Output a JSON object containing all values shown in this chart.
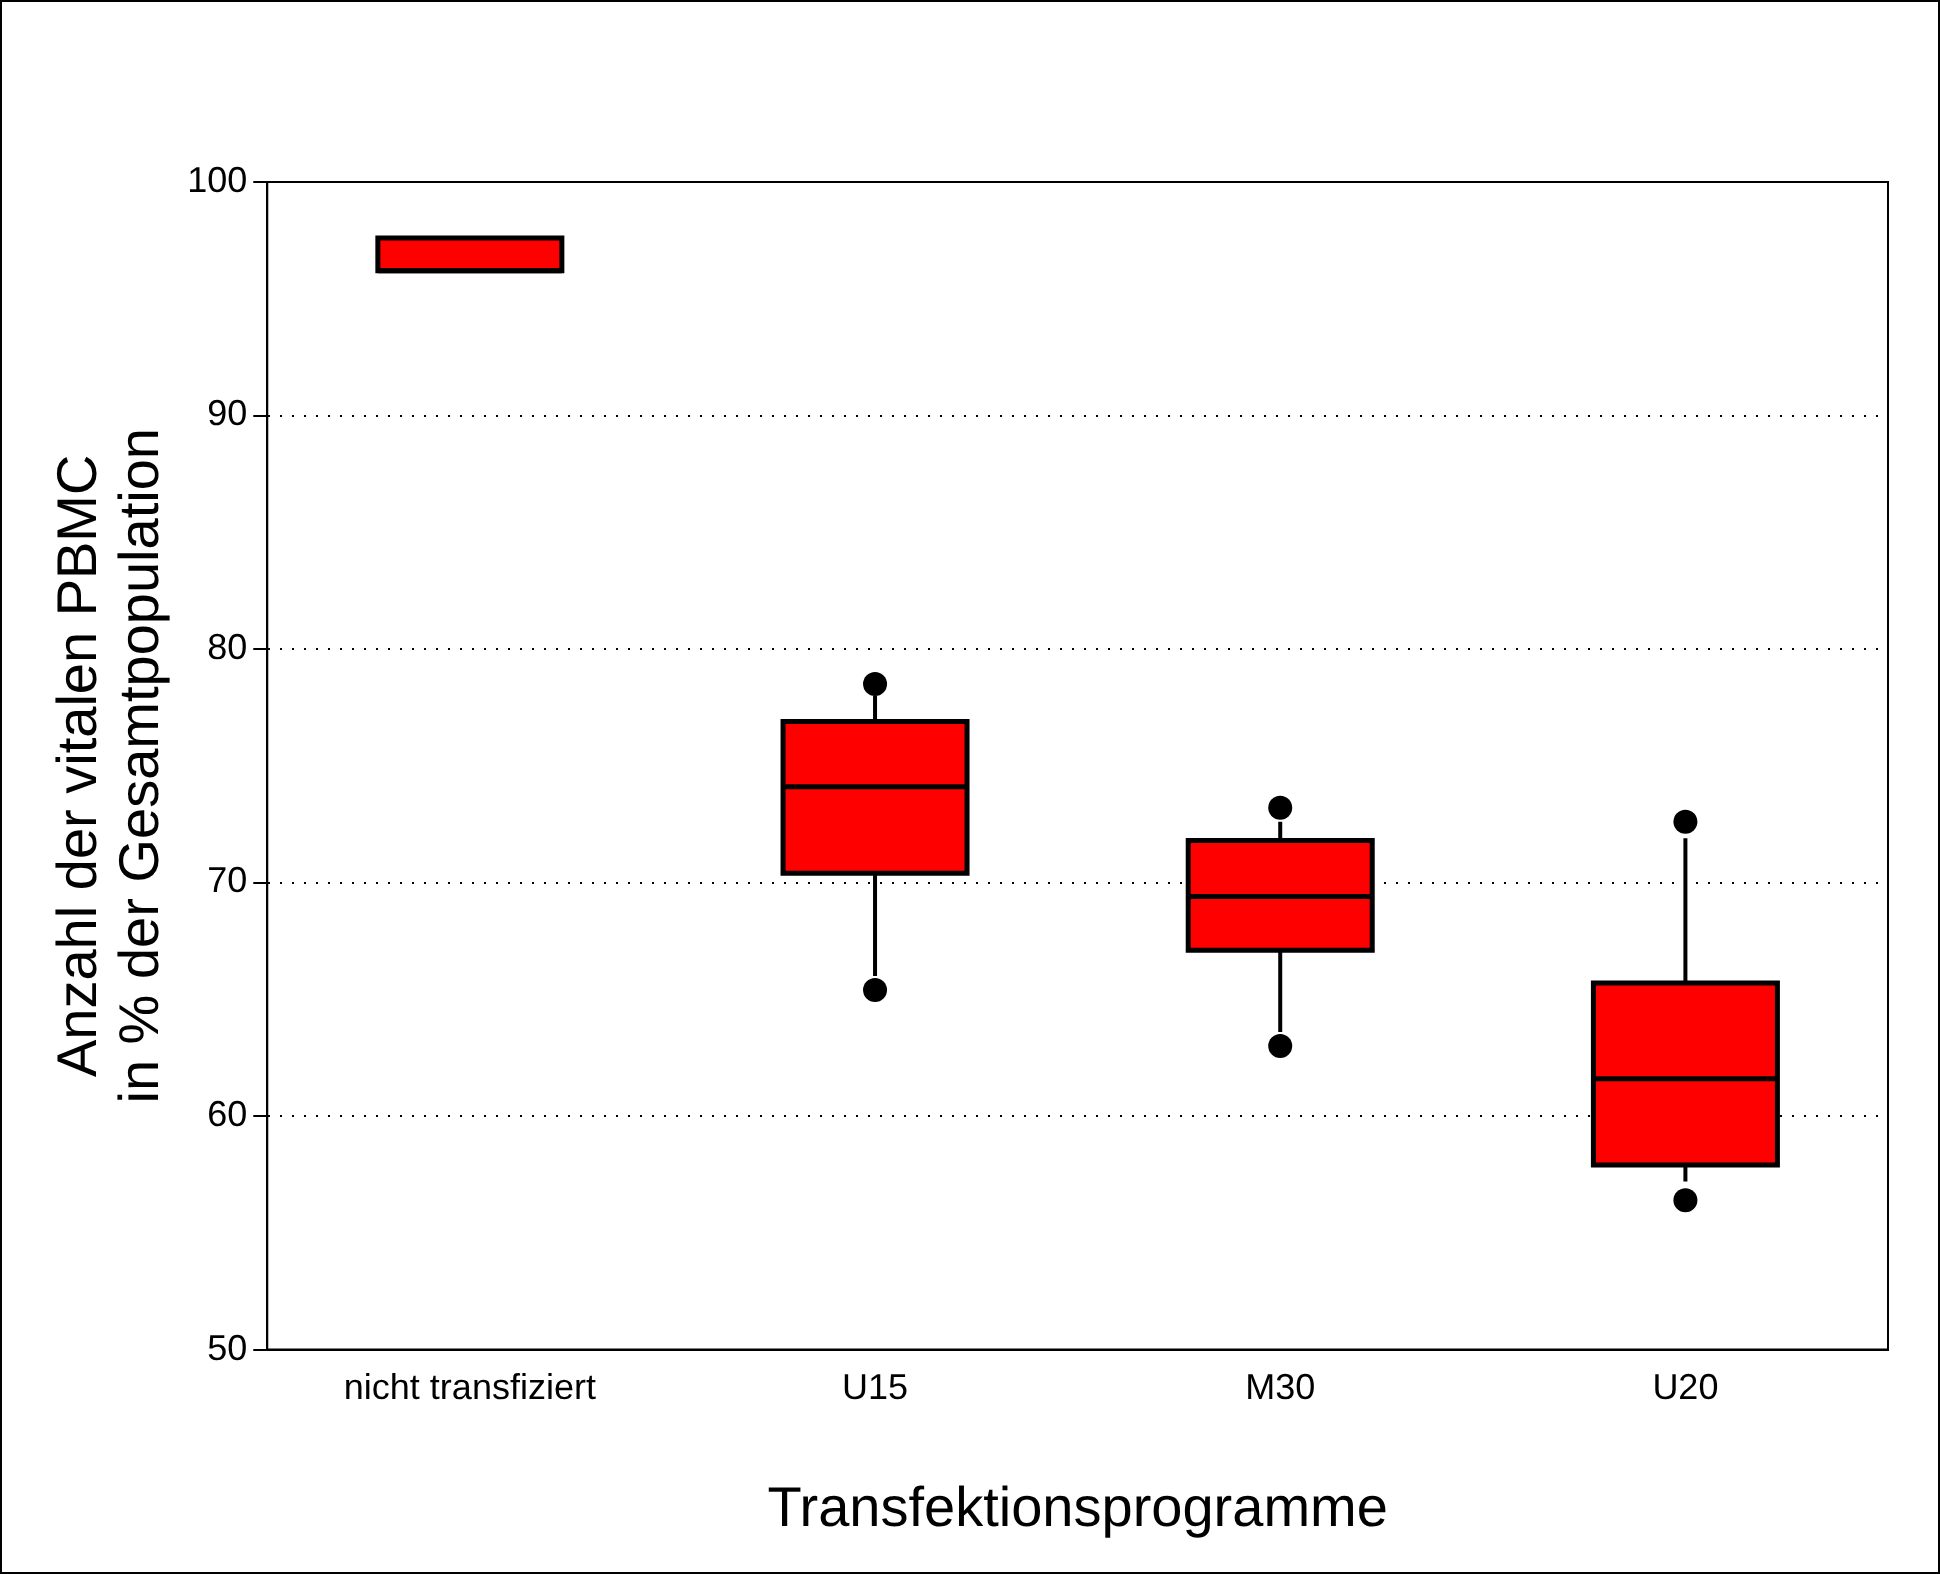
{
  "chart_data": {
    "type": "box",
    "xlabel": "Transfektionsprogramme",
    "ylabel": "Anzahl der vitalen PBMC\nin % der Gesamtpopulation",
    "categories": [
      "nicht transfiziert",
      "U15",
      "M30",
      "U20"
    ],
    "color": "#ff0000",
    "boxes": [
      {
        "low": 96.2,
        "q1": 96.2,
        "median": 96.2,
        "q3": 97.6,
        "high": 97.6
      },
      {
        "low": 66.0,
        "q1": 70.4,
        "median": 74.1,
        "q3": 76.9,
        "high": 78.0,
        "outliers": [
          65.4,
          78.5
        ]
      },
      {
        "low": 63.6,
        "q1": 67.1,
        "median": 69.4,
        "q3": 71.8,
        "high": 72.6,
        "outliers": [
          63.0,
          73.2
        ]
      },
      {
        "low": 57.2,
        "q1": 57.9,
        "median": 61.6,
        "q3": 65.7,
        "high": 71.9,
        "outliers": [
          56.4,
          72.6
        ]
      }
    ],
    "ylim": [
      50,
      100
    ],
    "yticks": [
      50,
      60,
      70,
      80,
      90,
      100
    ],
    "grid": "y"
  }
}
